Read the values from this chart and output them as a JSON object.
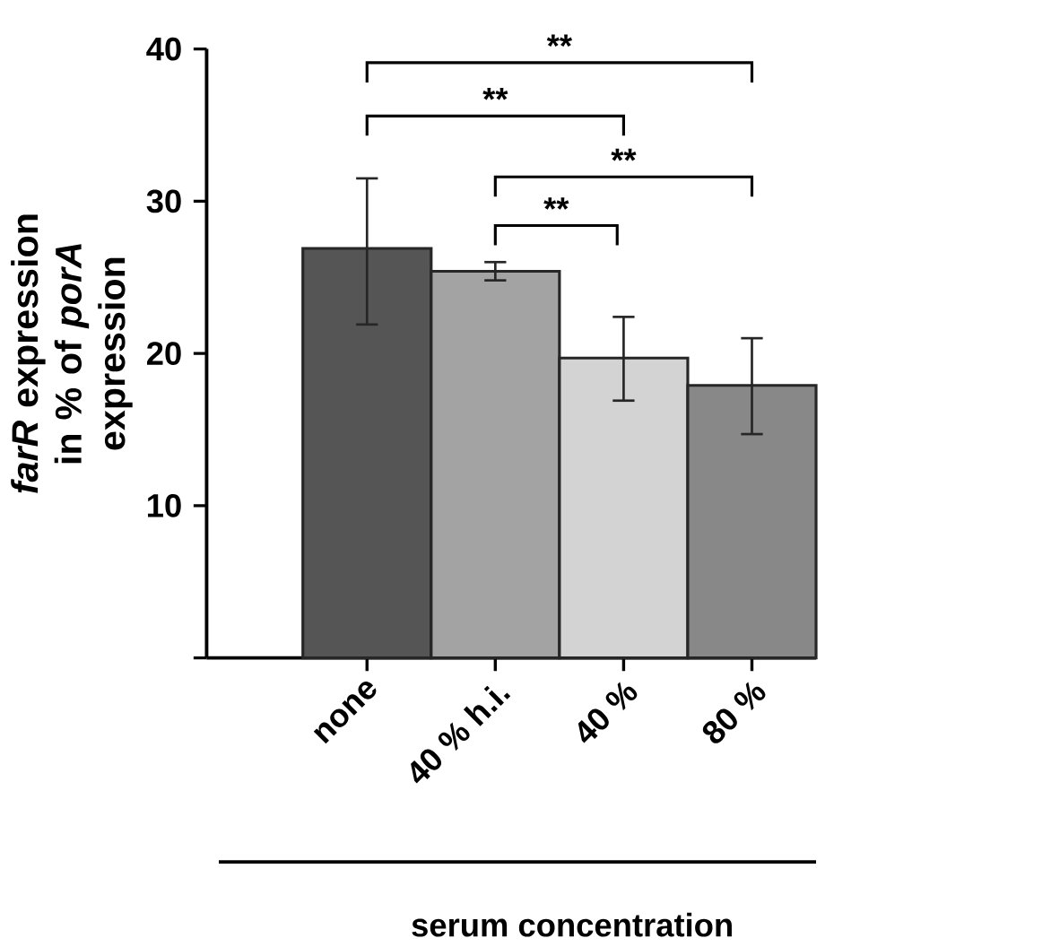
{
  "chart_data": {
    "type": "bar",
    "xlabel": "serum concentration",
    "ylabel": "*farR* expression in % of *porA* expression",
    "categories": [
      "none",
      "40 % h.i.",
      "40 %",
      "80 %"
    ],
    "values": [
      26.9,
      25.4,
      19.7,
      17.9
    ],
    "colors": [
      "#555555",
      "#a3a3a3",
      "#d3d3d3",
      "#888888"
    ],
    "errors": [
      [
        21.9,
        31.5
      ],
      [
        24.8,
        26.0
      ],
      [
        16.9,
        22.4
      ],
      [
        14.7,
        21.0
      ]
    ],
    "ylim": [
      0,
      40
    ],
    "yticks": [
      {
        "value": 0,
        "label": null
      },
      10,
      20,
      30,
      40
    ],
    "annotations": [
      "**",
      "**",
      "**",
      "**"
    ]
  }
}
